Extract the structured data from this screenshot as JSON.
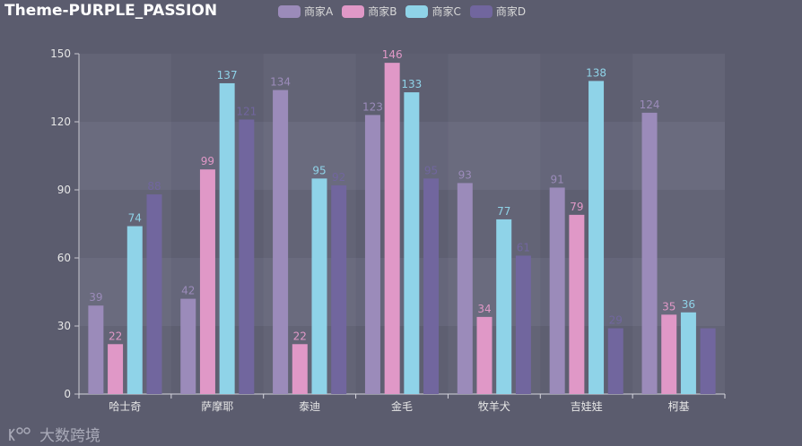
{
  "title": "Theme-PURPLE_PASSION",
  "watermark": "大数跨境",
  "chart_data": {
    "type": "bar",
    "title": "Theme-PURPLE_PASSION",
    "categories": [
      "哈士奇",
      "萨摩耶",
      "泰迪",
      "金毛",
      "牧羊犬",
      "吉娃娃",
      "柯基"
    ],
    "series": [
      {
        "name": "商家A",
        "color": "#9b8bba",
        "values": [
          39,
          42,
          134,
          123,
          93,
          91,
          124
        ]
      },
      {
        "name": "商家B",
        "color": "#e098c7",
        "values": [
          22,
          99,
          22,
          146,
          34,
          79,
          35
        ]
      },
      {
        "name": "商家C",
        "color": "#8fd3e8",
        "values": [
          74,
          137,
          95,
          133,
          77,
          138,
          36
        ]
      },
      {
        "name": "商家D",
        "color": "#71669e",
        "values": [
          88,
          121,
          92,
          95,
          61,
          29,
          29
        ]
      }
    ],
    "hidden_labels": [
      [
        6,
        3
      ]
    ],
    "ylim": [
      0,
      150
    ],
    "yticks": [
      0,
      30,
      60,
      90,
      120,
      150
    ],
    "xlabel": "",
    "ylabel": "",
    "legend": "top-center"
  }
}
